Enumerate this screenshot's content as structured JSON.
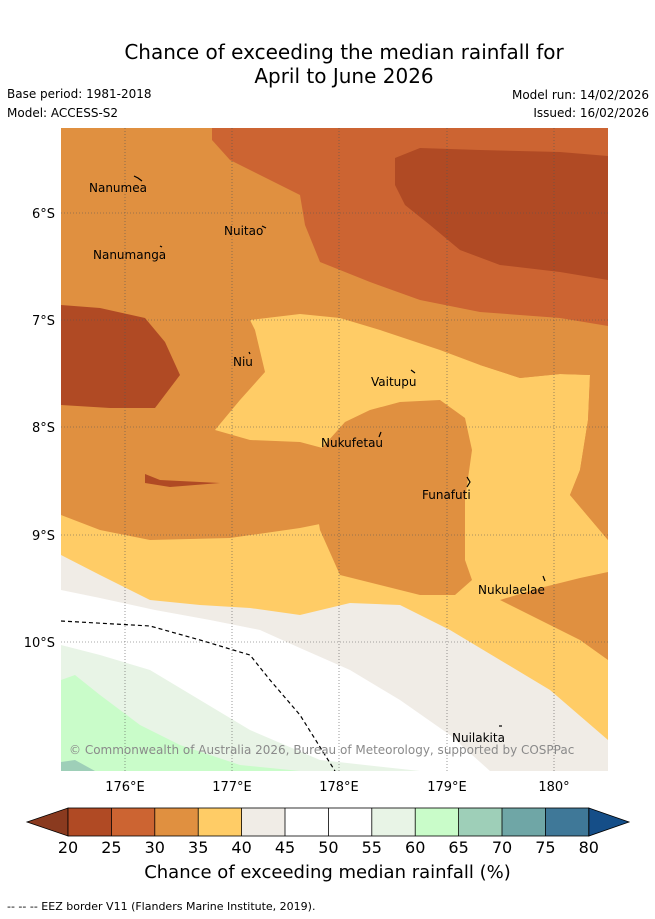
{
  "title": {
    "line1": "Chance of exceeding the median rainfall for",
    "line2": "April to June 2026"
  },
  "meta": {
    "base_period": "Base period: 1981-2018",
    "model": "Model: ACCESS-S2",
    "model_run": "Model run: 14/02/2026",
    "issued": "Issued: 16/02/2026"
  },
  "map": {
    "lat_ticks": [
      "6°S",
      "7°S",
      "8°S",
      "9°S",
      "10°S"
    ],
    "lon_ticks": [
      "176°E",
      "177°E",
      "178°E",
      "179°E",
      "180°"
    ],
    "islands": [
      "Nanumea",
      "Nuitao",
      "Nanumanga",
      "Niu",
      "Vaitupu",
      "Nukufetau",
      "Funafuti",
      "Nukulaelae",
      "Nuilakita"
    ],
    "copyright": "© Commonwealth of Australia 2026, Bureau of Meteorology, supported by COSPPac"
  },
  "legend": {
    "ticks": [
      "20",
      "25",
      "30",
      "35",
      "40",
      "45",
      "50",
      "55",
      "60",
      "65",
      "70",
      "75",
      "80"
    ],
    "title": "Chance of exceeding median rainfall (%)",
    "colors": {
      "below_20": "#8a3a1f",
      "20_25": "#b04a24",
      "25_30": "#cc6432",
      "30_35": "#e09040",
      "35_40": "#ffcc66",
      "40_45": "#f0ece6",
      "45_50": "#ffffff",
      "50_55": "#ffffff",
      "55_60": "#e8f4e6",
      "60_65": "#c9fcc9",
      "65_70": "#9ecfb8",
      "70_75": "#6fa6a6",
      "75_80": "#3f7898",
      "above_80": "#154e88"
    }
  },
  "footer": {
    "eez_note": "-- -- -- EEZ border V11 (Flanders Marine Institute, 2019)."
  }
}
